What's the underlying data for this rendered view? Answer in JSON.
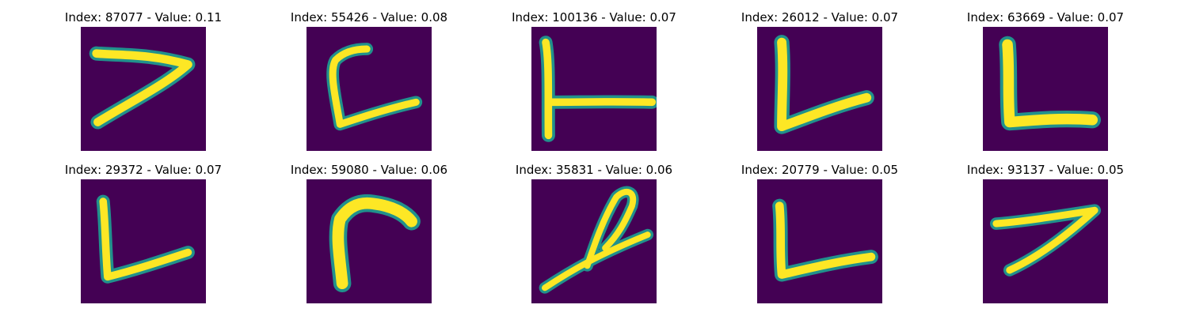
{
  "colors": {
    "background": "#440154",
    "mid": "#21918c",
    "stroke": "#fde725"
  },
  "tiles": [
    {
      "title": "Index: 87077 - Value: 0.11",
      "glyph": "seven-shape"
    },
    {
      "title": "Index: 55426 - Value: 0.08",
      "glyph": "bracket-shape"
    },
    {
      "title": "Index: 100136 - Value: 0.07",
      "glyph": "t-shape"
    },
    {
      "title": "Index: 26012 - Value: 0.07",
      "glyph": "l-shape"
    },
    {
      "title": "Index: 63669 - Value: 0.07",
      "glyph": "l-shape"
    },
    {
      "title": "Index: 29372 - Value: 0.07",
      "glyph": "l-shape"
    },
    {
      "title": "Index: 59080 - Value: 0.06",
      "glyph": "gamma-shape"
    },
    {
      "title": "Index: 35831 - Value: 0.06",
      "glyph": "loop-shape"
    },
    {
      "title": "Index: 20779 - Value: 0.05",
      "glyph": "l-shape"
    },
    {
      "title": "Index: 93137 - Value: 0.05",
      "glyph": "seven-shape"
    }
  ]
}
